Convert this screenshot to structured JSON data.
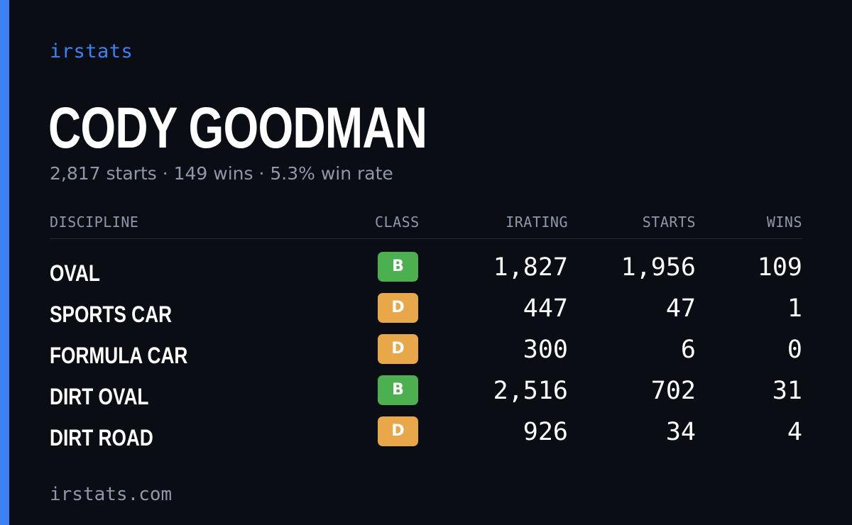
{
  "theme": {
    "background": "#0a0d14",
    "accent": "#3b82f6",
    "text_primary": "#ffffff",
    "text_muted": "#8e98aa",
    "class_colors": {
      "B": "#4caf50",
      "D": "#e8a84a"
    }
  },
  "brand": "irstats",
  "driver": {
    "name": "CODY GOODMAN",
    "summary": "2,817 starts · 149 wins · 5.3% win rate"
  },
  "table": {
    "headers": {
      "discipline": "DISCIPLINE",
      "class": "CLASS",
      "irating": "IRATING",
      "starts": "STARTS",
      "wins": "WINS"
    },
    "rows": [
      {
        "discipline": "OVAL",
        "class": "B",
        "irating": "1,827",
        "starts": "1,956",
        "wins": "109"
      },
      {
        "discipline": "SPORTS CAR",
        "class": "D",
        "irating": "447",
        "starts": "47",
        "wins": "1"
      },
      {
        "discipline": "FORMULA CAR",
        "class": "D",
        "irating": "300",
        "starts": "6",
        "wins": "0"
      },
      {
        "discipline": "DIRT OVAL",
        "class": "B",
        "irating": "2,516",
        "starts": "702",
        "wins": "31"
      },
      {
        "discipline": "DIRT ROAD",
        "class": "D",
        "irating": "926",
        "starts": "34",
        "wins": "4"
      }
    ]
  },
  "footer": "irstats.com"
}
